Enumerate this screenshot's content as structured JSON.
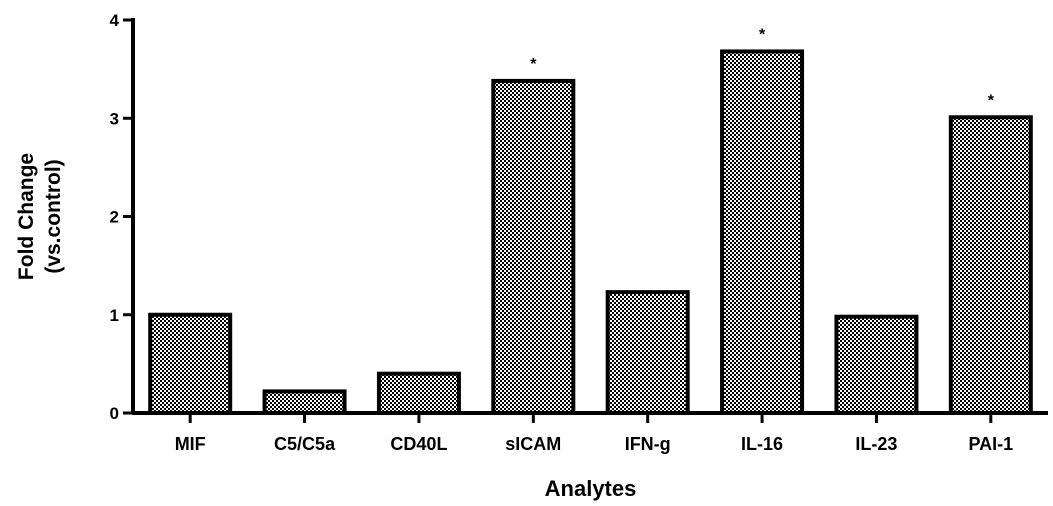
{
  "colors": {
    "bar_fill_pattern": "checkerboard",
    "bar_dark": "#000000",
    "bar_light": "#ffffff",
    "axis": "#000000",
    "background": "#ffffff"
  },
  "chart_data": {
    "type": "bar",
    "title": "",
    "xlabel": "Analytes",
    "ylabel_lines": [
      "Fold Change",
      "(vs.control)"
    ],
    "categories": [
      "MIF",
      "C5/C5a",
      "CD40L",
      "sICAM",
      "IFN-g",
      "IL-16",
      "IL-23",
      "PAI-1"
    ],
    "values": [
      1.0,
      0.22,
      0.4,
      3.38,
      1.23,
      3.68,
      0.98,
      3.01
    ],
    "significance": [
      "",
      "",
      "",
      "*",
      "",
      "*",
      "",
      "*"
    ],
    "ylim": [
      0,
      4
    ],
    "yticks": [
      0,
      1,
      2,
      3,
      4
    ],
    "grid": false,
    "legend": "none"
  }
}
